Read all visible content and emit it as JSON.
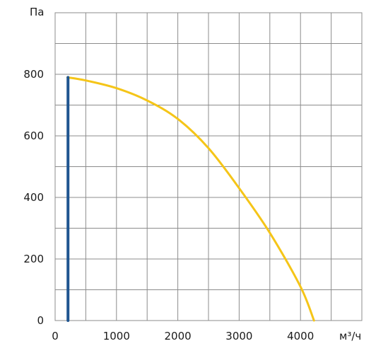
{
  "chart_data": {
    "type": "line",
    "xlabel": "м³/ч",
    "ylabel": "Па",
    "xlim": [
      0,
      5000
    ],
    "ylim": [
      0,
      1000
    ],
    "x_ticks": [
      0,
      1000,
      2000,
      3000,
      4000
    ],
    "y_ticks": [
      0,
      200,
      400,
      600,
      800
    ],
    "grid": true,
    "grid_step_x": 500,
    "grid_step_y": 100,
    "series": [
      {
        "color": "#f5c518",
        "points": [
          [
            200,
            790
          ],
          [
            500,
            780
          ],
          [
            1000,
            755
          ],
          [
            1500,
            715
          ],
          [
            2000,
            655
          ],
          [
            2500,
            560
          ],
          [
            3000,
            430
          ],
          [
            3500,
            285
          ],
          [
            4000,
            110
          ],
          [
            4220,
            0
          ]
        ]
      },
      {
        "color": "#1f5590",
        "points": [
          [
            210,
            0
          ],
          [
            210,
            790
          ]
        ]
      }
    ]
  }
}
